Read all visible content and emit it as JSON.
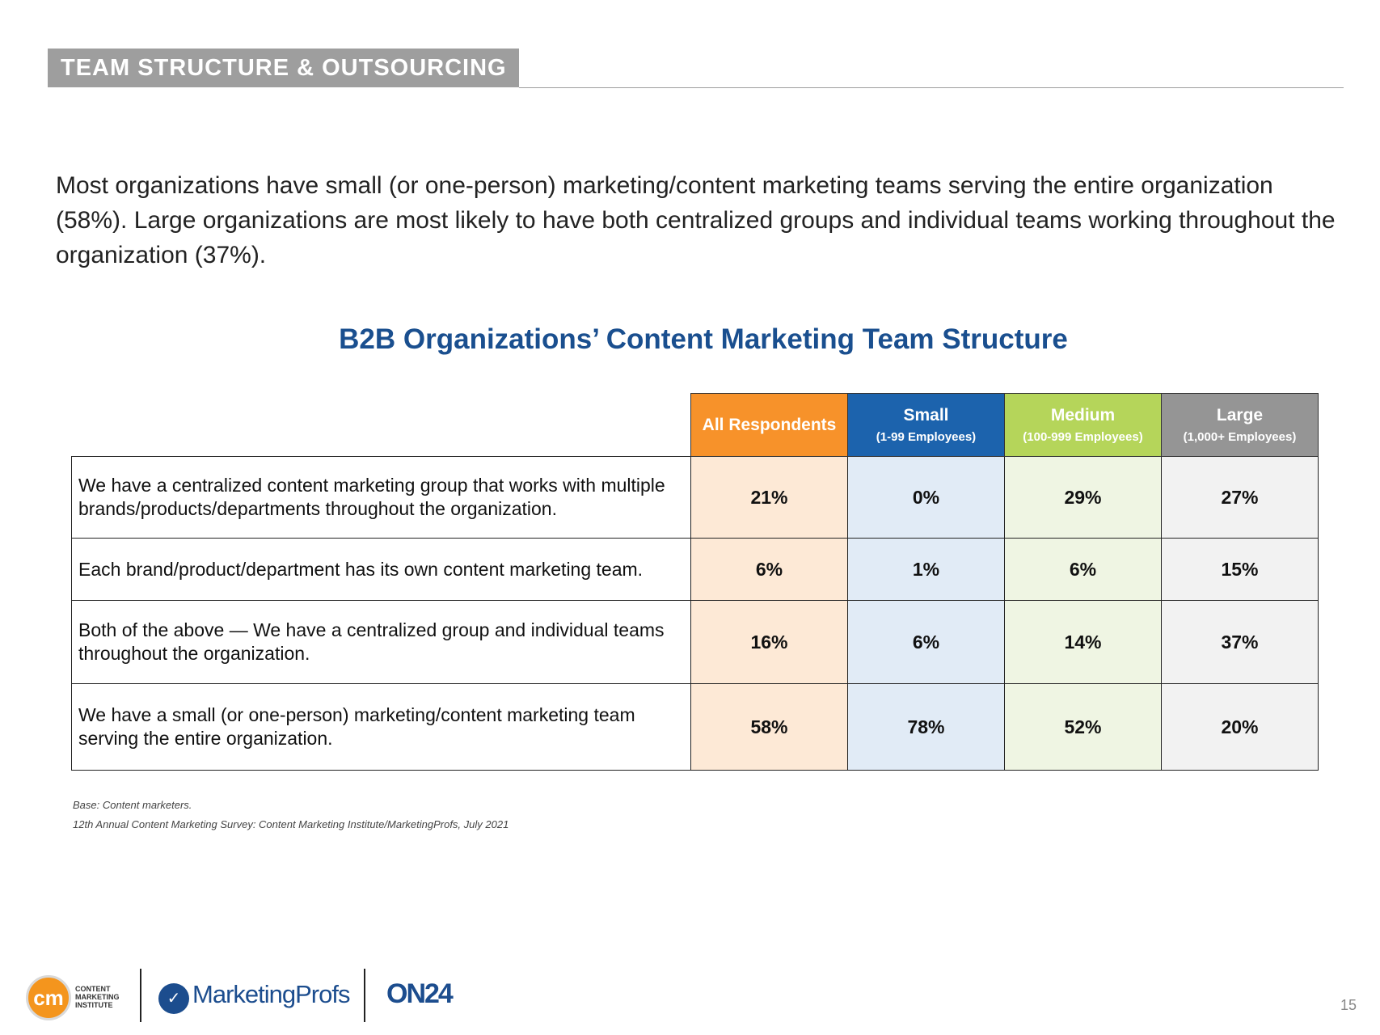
{
  "header": {
    "section_title": "TEAM STRUCTURE & OUTSOURCING"
  },
  "intro_text": "Most organizations have small (or one-person) marketing/content marketing teams serving the entire organization (58%). Large organizations are most likely to have both centralized groups and individual teams working throughout the organization (37%).",
  "colors": {
    "title_blue": "#1a4f8f",
    "all_header": "#f7922a",
    "all_cell": "#fde9d6",
    "small_header": "#1c63ad",
    "small_cell": "#e1ebf6",
    "medium_header": "#b5d55a",
    "medium_cell": "#eff5e3",
    "large_header": "#959595",
    "large_cell": "#f2f2f2"
  },
  "chart_data": {
    "type": "table",
    "title": "B2B Organizations’ Content Marketing Team Structure",
    "columns": [
      {
        "label": "All Respondents",
        "sublabel": ""
      },
      {
        "label": "Small",
        "sublabel": "(1-99 Employees)"
      },
      {
        "label": "Medium",
        "sublabel": "(100-999 Employees)"
      },
      {
        "label": "Large",
        "sublabel": "(1,000+ Employees)"
      }
    ],
    "rows": [
      {
        "label": "We have a centralized content marketing group that works with multiple brands/products/departments throughout the organization.",
        "values": [
          "21%",
          "0%",
          "29%",
          "27%"
        ]
      },
      {
        "label": "Each brand/product/department has its own content marketing team.",
        "values": [
          "6%",
          "1%",
          "6%",
          "15%"
        ]
      },
      {
        "label": "Both of the above — We have a centralized group and individual teams throughout the organization.",
        "values": [
          "16%",
          "6%",
          "14%",
          "37%"
        ]
      },
      {
        "label": "We have a small (or one-person) marketing/content marketing team serving the entire organization.",
        "values": [
          "58%",
          "78%",
          "52%",
          "20%"
        ]
      }
    ]
  },
  "footnotes": {
    "base": "Base: Content marketers.",
    "source": "12th Annual Content Marketing Survey: Content Marketing Institute/MarketingProfs, July 2021"
  },
  "logos": {
    "cmi_mark": "cm",
    "cmi_line1": "CONTENT",
    "cmi_line2": "MARKETING",
    "cmi_line3": "INSTITUTE",
    "marketingprofs": "MarketingProfs",
    "on24": "ON24"
  },
  "page_number": "15"
}
